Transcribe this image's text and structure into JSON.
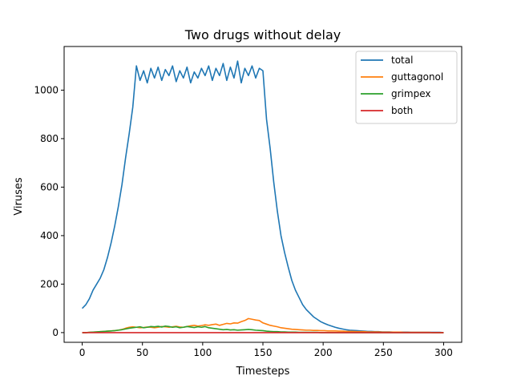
{
  "chart_data": {
    "type": "line",
    "title": "Two drugs without delay",
    "xlabel": "Timesteps",
    "ylabel": "Viruses",
    "xlim": [
      -15,
      315
    ],
    "ylim": [
      -40,
      1180
    ],
    "xticks": [
      0,
      50,
      100,
      150,
      200,
      250,
      300
    ],
    "yticks": [
      0,
      200,
      400,
      600,
      800,
      1000
    ],
    "legend_position": "top-right",
    "grid": false,
    "x": [
      0,
      3,
      6,
      9,
      12,
      15,
      18,
      21,
      24,
      27,
      30,
      33,
      36,
      39,
      42,
      45,
      48,
      51,
      54,
      57,
      60,
      63,
      66,
      69,
      72,
      75,
      78,
      81,
      84,
      87,
      90,
      93,
      96,
      99,
      102,
      105,
      108,
      111,
      114,
      117,
      120,
      123,
      126,
      129,
      132,
      135,
      138,
      141,
      144,
      147,
      150,
      153,
      156,
      159,
      162,
      165,
      168,
      171,
      174,
      177,
      180,
      183,
      186,
      189,
      192,
      195,
      198,
      201,
      204,
      207,
      210,
      213,
      216,
      219,
      222,
      225,
      228,
      231,
      234,
      237,
      240,
      243,
      246,
      249,
      252,
      255,
      258,
      261,
      264,
      267,
      270,
      273,
      276,
      279,
      282,
      285,
      288,
      291,
      294,
      297,
      300
    ],
    "series": [
      {
        "name": "total",
        "color": "#1f77b4",
        "values": [
          100,
          115,
          140,
          175,
          200,
          225,
          260,
          310,
          370,
          440,
          520,
          610,
          720,
          820,
          930,
          1100,
          1040,
          1080,
          1030,
          1090,
          1050,
          1095,
          1040,
          1085,
          1060,
          1100,
          1035,
          1080,
          1050,
          1095,
          1030,
          1075,
          1050,
          1090,
          1060,
          1100,
          1040,
          1090,
          1060,
          1110,
          1040,
          1095,
          1050,
          1120,
          1030,
          1090,
          1060,
          1100,
          1050,
          1090,
          1080,
          880,
          760,
          620,
          500,
          400,
          330,
          270,
          215,
          175,
          145,
          115,
          95,
          80,
          65,
          55,
          45,
          38,
          32,
          27,
          22,
          18,
          15,
          12,
          10,
          9,
          8,
          7,
          6,
          5,
          5,
          4,
          4,
          3,
          3,
          3,
          2,
          2,
          2,
          2,
          2,
          1,
          1,
          1,
          1,
          1,
          1,
          1,
          1,
          1,
          0
        ]
      },
      {
        "name": "guttagonol",
        "color": "#ff7f0e",
        "values": [
          0,
          0,
          1,
          2,
          3,
          4,
          5,
          6,
          7,
          8,
          10,
          13,
          18,
          22,
          24,
          22,
          20,
          21,
          23,
          22,
          20,
          22,
          25,
          24,
          22,
          24,
          26,
          23,
          22,
          25,
          28,
          30,
          27,
          29,
          32,
          30,
          33,
          35,
          30,
          34,
          38,
          36,
          40,
          39,
          45,
          50,
          58,
          55,
          52,
          50,
          40,
          35,
          30,
          27,
          24,
          20,
          18,
          16,
          14,
          13,
          12,
          11,
          10,
          10,
          9,
          9,
          8,
          8,
          7,
          7,
          7,
          6,
          6,
          5,
          5,
          5,
          4,
          4,
          4,
          3,
          3,
          3,
          3,
          2,
          2,
          2,
          2,
          2,
          2,
          1,
          1,
          1,
          1,
          1,
          1,
          1,
          1,
          0,
          0,
          0,
          0
        ]
      },
      {
        "name": "grimpex",
        "color": "#2ca02c",
        "values": [
          0,
          0,
          1,
          2,
          3,
          4,
          5,
          6,
          7,
          8,
          10,
          12,
          15,
          18,
          20,
          22,
          24,
          20,
          22,
          25,
          24,
          26,
          23,
          27,
          25,
          22,
          24,
          20,
          22,
          25,
          23,
          21,
          24,
          22,
          25,
          20,
          18,
          16,
          14,
          12,
          13,
          11,
          12,
          10,
          11,
          12,
          13,
          12,
          10,
          9,
          8,
          6,
          5,
          4,
          4,
          3,
          3,
          2,
          2,
          2,
          1,
          1,
          1,
          1,
          1,
          1,
          0,
          0,
          0,
          0,
          0,
          0,
          0,
          0,
          0,
          0,
          0,
          0,
          0,
          0,
          0,
          0,
          0,
          0,
          0,
          0,
          0,
          0,
          0,
          0,
          0,
          0,
          0,
          0,
          0,
          0,
          0,
          0,
          0,
          0,
          0
        ]
      },
      {
        "name": "both",
        "color": "#d62728",
        "values": [
          0,
          0,
          0,
          0,
          0,
          0,
          0,
          0,
          0,
          0,
          0,
          0,
          0,
          0,
          0,
          0,
          0,
          0,
          0,
          0,
          0,
          0,
          0,
          0,
          0,
          0,
          0,
          0,
          0,
          0,
          0,
          0,
          0,
          0,
          0,
          0,
          0,
          0,
          0,
          0,
          0,
          0,
          0,
          0,
          0,
          0,
          0,
          0,
          0,
          0,
          0,
          0,
          0,
          0,
          0,
          0,
          0,
          0,
          0,
          0,
          0,
          0,
          0,
          0,
          0,
          0,
          0,
          0,
          0,
          0,
          0,
          0,
          0,
          0,
          0,
          0,
          0,
          0,
          0,
          0,
          0,
          0,
          0,
          0,
          0,
          0,
          0,
          0,
          0,
          0,
          0,
          0,
          0,
          0,
          0,
          0,
          0,
          0,
          0,
          0,
          0
        ]
      }
    ]
  }
}
